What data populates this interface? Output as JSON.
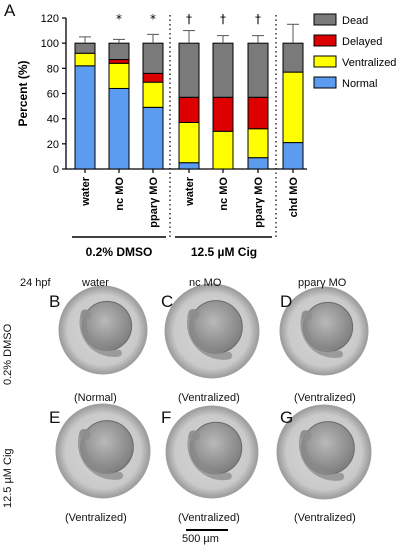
{
  "chart_data": {
    "type": "bar",
    "panel_label": "A",
    "stacked": true,
    "ylabel": "Percent (%)",
    "yticks": [
      0,
      20,
      40,
      60,
      80,
      100,
      120
    ],
    "ylim": [
      0,
      120
    ],
    "categories": [
      "water",
      "nc MO",
      "pparγ MO",
      "water",
      "nc MO",
      "pparγ MO",
      "chd MO"
    ],
    "group_labels": [
      "0.2% DMSO",
      "12.5 µM Cig"
    ],
    "markers": [
      "",
      "*",
      "*",
      "†",
      "†",
      "†",
      ""
    ],
    "series": [
      {
        "name": "Normal",
        "color": "#5b9bf0",
        "values": [
          82,
          64,
          49,
          5,
          0,
          9,
          21
        ],
        "errors": [
          0,
          5,
          6,
          3,
          0,
          0,
          13
        ]
      },
      {
        "name": "Ventralized",
        "color": "#ffff00",
        "values": [
          10,
          20,
          20,
          32,
          30,
          23,
          56
        ],
        "errors": [
          5,
          6,
          6,
          10,
          5,
          8,
          0
        ]
      },
      {
        "name": "Delayed",
        "color": "#dd0000",
        "values": [
          0,
          3,
          7,
          20,
          27,
          25,
          0
        ],
        "errors": [
          0,
          0,
          3,
          8,
          4,
          10,
          0
        ]
      },
      {
        "name": "Dead",
        "color": "#7a7a7a",
        "values": [
          8,
          13,
          24,
          43,
          43,
          43,
          23
        ],
        "errors": [
          5,
          3,
          7,
          10,
          6,
          6,
          15
        ]
      }
    ],
    "legend_order": [
      "Dead",
      "Delayed",
      "Ventralized",
      "Normal"
    ],
    "legend_position": "right"
  },
  "photos": {
    "stage": "24 hpf",
    "columns": [
      "water",
      "nc MO",
      "pparγ MO"
    ],
    "rows": [
      "0.2% DMSO",
      "12.5 µM Cig"
    ],
    "panels": [
      {
        "letter": "B",
        "caption": "(Normal)"
      },
      {
        "letter": "C",
        "caption": "(Ventralized)"
      },
      {
        "letter": "D",
        "caption": "(Ventralized)"
      },
      {
        "letter": "E",
        "caption": "(Ventralized)"
      },
      {
        "letter": "F",
        "caption": "(Ventralized)"
      },
      {
        "letter": "G",
        "caption": "(Ventralized)"
      }
    ],
    "scale_bar": "500 µm"
  }
}
